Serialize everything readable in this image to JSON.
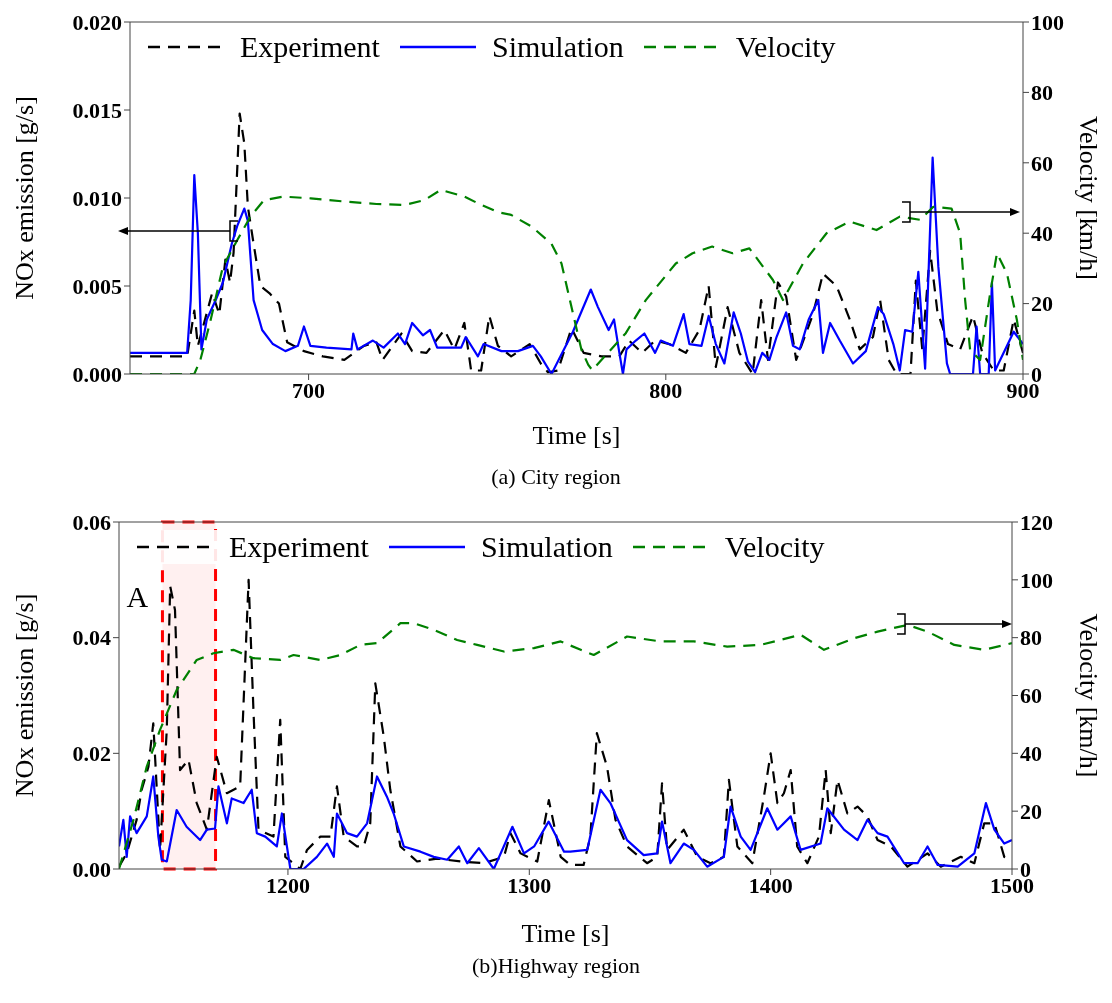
{
  "chart_data": [
    {
      "type": "line",
      "title": "(a) City region",
      "xlabel": "Time [s]",
      "ylabel": "NOx emission [g/s]",
      "y2label": "Velocity [km/h]",
      "xlim": [
        650,
        900
      ],
      "xticks": [
        700,
        800,
        900
      ],
      "ylim": [
        0,
        0.02
      ],
      "yticks": [
        {
          "value": 0,
          "label": "0.000"
        },
        {
          "value": 0.005,
          "label": "0.005"
        },
        {
          "value": 0.01,
          "label": "0.010"
        },
        {
          "value": 0.015,
          "label": "0.015"
        },
        {
          "value": 0.02,
          "label": "0.020"
        }
      ],
      "y2lim": [
        0,
        100
      ],
      "y2ticks": [
        0,
        20,
        40,
        60,
        80,
        100
      ],
      "legend": "top",
      "grid": false,
      "series": [
        {
          "name": "Experiment",
          "color": "#000000",
          "line_style": "dashed",
          "x": [
            650,
            666,
            668,
            669,
            671,
            673,
            675,
            676.7,
            678,
            679,
            680.7,
            682,
            683,
            684.6,
            686.5,
            689,
            691.7,
            694,
            698.7,
            704,
            710,
            715.5,
            719,
            720.7,
            726,
            729,
            733,
            738,
            740.8,
            743.6,
            745.5,
            748.3,
            750.6,
            753,
            756.7,
            761.9,
            765,
            767,
            769.8,
            773.6,
            777,
            782,
            787,
            789.7,
            793.4,
            797,
            801,
            805.6,
            809.4,
            812,
            814,
            817.3,
            820.6,
            824.3,
            826.7,
            828.6,
            831.4,
            833.7,
            836.5,
            841.2,
            844,
            847.8,
            851.5,
            854.3,
            858,
            860,
            862.4,
            864.6,
            868.5,
            870,
            871.8,
            874,
            876,
            879,
            882.4,
            886,
            888.6,
            891.8,
            894.6,
            897.4,
            900
          ],
          "values": [
            0.001,
            0.001,
            0.0036,
            0.0016,
            0.0031,
            0.0046,
            0.0034,
            0.0065,
            0.0052,
            0.0069,
            0.0148,
            0.0131,
            0.0095,
            0.0074,
            0.005,
            0.0046,
            0.004,
            0.0018,
            0.0013,
            0.001,
            0.0008,
            0.0016,
            0.0018,
            0.0008,
            0.0023,
            0.0013,
            0.0012,
            0.0025,
            0.0014,
            0.0029,
            0.0002,
            0.0002,
            0.0033,
            0.0016,
            0.001,
            0.0017,
            0.0006,
            0.0001,
            0.0002,
            0.0026,
            0.0012,
            0.001,
            0.001,
            0.0019,
            0.0012,
            0.0019,
            0.0017,
            0.0012,
            0.0025,
            0.005,
            0.0004,
            0.0038,
            0.0012,
            0,
            0.0042,
            0.0008,
            0.0052,
            0.0044,
            0.0008,
            0.0034,
            0.0057,
            0.005,
            0.0031,
            0.0014,
            0.0021,
            0.0042,
            0.0008,
            0,
            0,
            0.0053,
            0.0014,
            0.007,
            0.0036,
            0.0017,
            0.0014,
            0.0033,
            0.0012,
            0.0002,
            0.0002,
            0.0031,
            0.0012
          ]
        },
        {
          "name": "Simulation",
          "color": "#0000ff",
          "line_style": "solid",
          "x": [
            650,
            666,
            667,
            668,
            669,
            670,
            671.5,
            674,
            676,
            678.5,
            680,
            682,
            683,
            684.6,
            687,
            690,
            693.5,
            697,
            698.7,
            700.5,
            705,
            712,
            712.5,
            713.7,
            718,
            721,
            725,
            727,
            729,
            732,
            734,
            736,
            742.7,
            744,
            747.4,
            749,
            754,
            758.6,
            762.8,
            765,
            768,
            774,
            779,
            781,
            784,
            785.5,
            787,
            788,
            789,
            791.6,
            794,
            797,
            798.6,
            802,
            805,
            806.6,
            810,
            812,
            814,
            816.4,
            819,
            821,
            823,
            825,
            827,
            829,
            831,
            833.7,
            835.6,
            837.5,
            840,
            842.7,
            844,
            846,
            848.7,
            852.4,
            856,
            859.4,
            861,
            863.7,
            865.5,
            867,
            869,
            870.7,
            872.6,
            874.7,
            876.3,
            878.7,
            879.6,
            886,
            887,
            888,
            890.4,
            891.3,
            892.2,
            897.4,
            900
          ],
          "values": [
            0.0012,
            0.0012,
            0.0042,
            0.0113,
            0.008,
            0.0014,
            0.0031,
            0.0042,
            0.0052,
            0.0074,
            0.0084,
            0.0094,
            0.0087,
            0.0042,
            0.0025,
            0.0017,
            0.0013,
            0.0016,
            0.0027,
            0.0016,
            0.0015,
            0.0014,
            0.0023,
            0.0014,
            0.0019,
            0.0015,
            0.0023,
            0.0017,
            0.0029,
            0.0022,
            0.0025,
            0.0015,
            0.0015,
            0.0021,
            0.001,
            0.0017,
            0.0013,
            0.0013,
            0.0016,
            0.001,
            0,
            0.0024,
            0.0048,
            0.0038,
            0.0025,
            0.0031,
            0.0012,
            0,
            0.0014,
            0.0019,
            0.0023,
            0.0012,
            0.0019,
            0.0016,
            0.0034,
            0.0017,
            0.0016,
            0.0033,
            0.0017,
            0.0006,
            0.0035,
            0.0023,
            0.0007,
            0.0001,
            0.0012,
            0.0008,
            0.0021,
            0.0035,
            0.0016,
            0.0014,
            0.0031,
            0.0042,
            0.0012,
            0.0029,
            0.0019,
            0.0006,
            0.0013,
            0.0038,
            0.0034,
            0.0017,
            0.0002,
            0.0025,
            0.0024,
            0.0058,
            0.0003,
            0.0123,
            0.0061,
            0.0006,
            0,
            0,
            0.0027,
            0,
            0,
            0.0052,
            0.0002,
            0.0024,
            0.0017
          ]
        },
        {
          "name": "Velocity",
          "color": "#008000",
          "line_style": "dashed",
          "axis": "y2",
          "x": [
            650,
            668,
            669.7,
            672.5,
            676,
            680,
            683.7,
            687.5,
            693,
            700.6,
            710,
            719,
            726.8,
            732.4,
            737,
            743.6,
            747.4,
            753,
            756.7,
            762.4,
            768,
            770.8,
            773.6,
            776.4,
            778.3,
            779.4,
            788.8,
            794.4,
            802.8,
            807.5,
            813,
            818.7,
            823.4,
            830,
            832.8,
            838.4,
            845,
            851.5,
            859,
            865.5,
            871.2,
            874.9,
            880,
            882.4,
            883.8,
            885.2,
            888,
            890.8,
            892.7,
            895.5,
            898.3,
            900
          ],
          "values": [
            0,
            0,
            4,
            15,
            30.5,
            38,
            44.7,
            49.4,
            50.4,
            49.9,
            49,
            48.3,
            48,
            49.4,
            52.3,
            50.4,
            48.5,
            46,
            45.2,
            41.9,
            37,
            31.4,
            19,
            6.8,
            2.6,
            1.1,
            11.6,
            21,
            31.4,
            34.3,
            36.2,
            34.3,
            35.7,
            26.7,
            21,
            31.4,
            40,
            43.3,
            40.9,
            44.7,
            43.8,
            47.5,
            47,
            40,
            21,
            6.8,
            4,
            22.9,
            34.3,
            28.6,
            15.3,
            4
          ]
        }
      ]
    },
    {
      "type": "line",
      "title": "(b)Highway region",
      "xlabel": "Time [s]",
      "ylabel": "NOx emission [g/s]",
      "y2label": "Velocity [km/h]",
      "xlim": [
        1130,
        1500
      ],
      "xticks": [
        1200,
        1300,
        1400,
        1500
      ],
      "ylim": [
        0,
        0.06
      ],
      "yticks": [
        {
          "value": 0,
          "label": "0.00"
        },
        {
          "value": 0.02,
          "label": "0.02"
        },
        {
          "value": 0.04,
          "label": "0.04"
        },
        {
          "value": 0.06,
          "label": "0.06"
        }
      ],
      "y2lim": [
        0,
        120
      ],
      "y2ticks": [
        0,
        20,
        40,
        60,
        80,
        100,
        120
      ],
      "legend": "top",
      "grid": false,
      "bands": [
        {
          "axis": "x",
          "from": 1148,
          "to": 1170,
          "label": "A",
          "color": "#ff0000"
        }
      ],
      "series": [
        {
          "name": "Experiment",
          "color": "#000000",
          "line_style": "dashed",
          "x": [
            1130,
            1133.2,
            1137.3,
            1139.4,
            1142.2,
            1144.2,
            1147,
            1149.8,
            1151.2,
            1153.2,
            1155.3,
            1158.8,
            1162.2,
            1166.4,
            1170.5,
            1174.7,
            1180.2,
            1183.7,
            1185.7,
            1187.8,
            1194,
            1196.8,
            1198.9,
            1205.1,
            1207.9,
            1213.4,
            1217.6,
            1220.3,
            1223.1,
            1228.6,
            1231.4,
            1234.1,
            1236.2,
            1239.7,
            1242.4,
            1246.6,
            1253.5,
            1261.8,
            1271.5,
            1281.2,
            1289.5,
            1292.2,
            1296.4,
            1303.3,
            1308.1,
            1313,
            1317,
            1322.5,
            1325.3,
            1328,
            1332.2,
            1335.7,
            1340.5,
            1348.8,
            1353,
            1355,
            1357.1,
            1364,
            1369.6,
            1375.1,
            1380.6,
            1382.7,
            1386.2,
            1392.4,
            1397.2,
            1400,
            1402.8,
            1405.5,
            1408.3,
            1411,
            1415.2,
            1420,
            1422.8,
            1424.9,
            1427.7,
            1431.8,
            1436,
            1440.1,
            1444.3,
            1449.8,
            1456.7,
            1465,
            1470.5,
            1478.8,
            1484.4,
            1488.5,
            1492.7,
            1496.8,
            1500
          ],
          "values": [
            0.0004,
            0.0027,
            0.0085,
            0.0137,
            0.0177,
            0.0252,
            0.0033,
            0.0241,
            0.0489,
            0.0448,
            0.0171,
            0.0189,
            0.0114,
            0.0068,
            0.0194,
            0.0131,
            0.0143,
            0.05,
            0.0275,
            0.0068,
            0.0056,
            0.0258,
            0.0021,
            0,
            0.0033,
            0.0056,
            0.0056,
            0.0143,
            0.0056,
            0.0039,
            0.0039,
            0.0079,
            0.0321,
            0.0229,
            0.0137,
            0.0039,
            0.0013,
            0.0018,
            0.0013,
            0.001,
            0.0021,
            0.0062,
            0.0027,
            0.0013,
            0.0119,
            0.0021,
            0.0007,
            0.0007,
            0.0056,
            0.0235,
            0.0177,
            0.0085,
            0.0039,
            0.001,
            0.0021,
            0.0148,
            0.0033,
            0.0068,
            0.0021,
            0.001,
            0.0021,
            0.0154,
            0.0039,
            0.001,
            0.0125,
            0.02,
            0.0114,
            0.0131,
            0.0171,
            0.0039,
            0.001,
            0.0056,
            0.0171,
            0.0062,
            0.0154,
            0.0096,
            0.0108,
            0.0091,
            0.005,
            0.0039,
            0.0004,
            0.0027,
            0.0004,
            0.0021,
            0.001,
            0.0079,
            0.0079,
            0.0021,
            0.0016
          ]
        },
        {
          "name": "Simulation",
          "color": "#0000ff",
          "line_style": "solid",
          "x": [
            1130,
            1131.8,
            1133.2,
            1134.6,
            1137.3,
            1141.5,
            1144.2,
            1146.3,
            1147.7,
            1149.8,
            1153.9,
            1158,
            1163.6,
            1166.4,
            1169.8,
            1171.2,
            1174.7,
            1176.7,
            1181.6,
            1185,
            1187.1,
            1190.6,
            1195.4,
            1197.5,
            1201,
            1206.5,
            1212,
            1216.2,
            1219,
            1220.3,
            1224.5,
            1228.6,
            1232.8,
            1236.9,
            1241,
            1243.8,
            1248,
            1254.9,
            1260.4,
            1266,
            1270.8,
            1274.3,
            1279.1,
            1285.3,
            1293,
            1297.8,
            1302,
            1308,
            1314.4,
            1317,
            1324,
            1329.5,
            1333.6,
            1340.5,
            1347.4,
            1353,
            1355,
            1358.5,
            1364,
            1368.2,
            1373.7,
            1380.6,
            1383.4,
            1387.6,
            1391.7,
            1398.6,
            1402.8,
            1408.3,
            1412.4,
            1420.7,
            1423.5,
            1430.4,
            1436,
            1440.1,
            1444.3,
            1448.4,
            1455.3,
            1460.9,
            1465,
            1469.2,
            1477.5,
            1484.4,
            1489.2,
            1492.7,
            1496.8,
            1500
          ],
          "values": [
            0.0039,
            0.0085,
            0.0021,
            0.0091,
            0.0062,
            0.0091,
            0.016,
            0.0056,
            0.0016,
            0.0013,
            0.0102,
            0.0073,
            0.005,
            0.0068,
            0.007,
            0.0143,
            0.0079,
            0.0122,
            0.0114,
            0.0137,
            0.0062,
            0.0056,
            0.0039,
            0.0096,
            0,
            0,
            0.0021,
            0.0044,
            0.0021,
            0.0096,
            0.0062,
            0.0056,
            0.0079,
            0.016,
            0.0125,
            0.0096,
            0.0039,
            0.003,
            0.0021,
            0.0016,
            0.0039,
            0.001,
            0.0036,
            0,
            0.0073,
            0.0027,
            0.0039,
            0.0082,
            0.003,
            0.003,
            0.0033,
            0.0137,
            0.0114,
            0.005,
            0.0024,
            0.0027,
            0.0082,
            0.001,
            0.0044,
            0.0033,
            0.0004,
            0.0021,
            0.0108,
            0.0056,
            0.0033,
            0.0105,
            0.0068,
            0.0091,
            0.0033,
            0.0044,
            0.0105,
            0.0068,
            0.005,
            0.0085,
            0.0062,
            0.0056,
            0.001,
            0.001,
            0.0039,
            0.0007,
            0.0004,
            0.0027,
            0.0114,
            0.0068,
            0.0044,
            0.005
          ]
        },
        {
          "name": "Velocity",
          "color": "#008000",
          "line_style": "dashed",
          "axis": "y2",
          "x": [
            1130,
            1136,
            1141.5,
            1147,
            1153.9,
            1162.2,
            1169.1,
            1177.4,
            1185.7,
            1196.8,
            1202.3,
            1213.4,
            1221.7,
            1230,
            1236.9,
            1246.6,
            1252.1,
            1260.4,
            1270.1,
            1278.4,
            1289.5,
            1301.9,
            1313,
            1321.3,
            1326.7,
            1340.5,
            1354.4,
            1368.2,
            1382,
            1395.9,
            1412.4,
            1422.1,
            1434.6,
            1444.3,
            1456.7,
            1465,
            1476.1,
            1488.5,
            1500
          ],
          "values": [
            0,
            17,
            35.4,
            48.1,
            61.9,
            72.3,
            74.6,
            75.8,
            72.9,
            72.3,
            74,
            72.3,
            74,
            77.5,
            78.1,
            85,
            85,
            82.7,
            79.2,
            77.5,
            75.2,
            76.4,
            78.7,
            75.8,
            74,
            80.4,
            78.7,
            78.7,
            76.9,
            77.5,
            81,
            75.8,
            79.8,
            82.1,
            84.4,
            82.1,
            77.5,
            75.8,
            78.1
          ]
        }
      ]
    }
  ]
}
